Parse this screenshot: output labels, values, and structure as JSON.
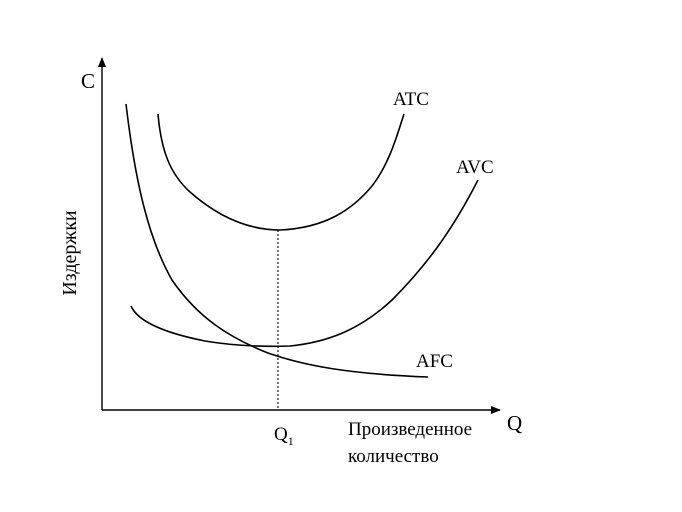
{
  "axes": {
    "y_symbol": "C",
    "y_label": "Издержки",
    "x_symbol": "Q",
    "x_label_line1": "Произведенное",
    "x_label_line2": "количество"
  },
  "marker": {
    "base": "Q",
    "subscript": "1"
  },
  "curves": [
    {
      "id": "atc",
      "label": "ATC"
    },
    {
      "id": "avc",
      "label": "AVC"
    },
    {
      "id": "afc",
      "label": "AFC"
    }
  ],
  "colors": {
    "ink": "#000000",
    "background": "#ffffff"
  }
}
